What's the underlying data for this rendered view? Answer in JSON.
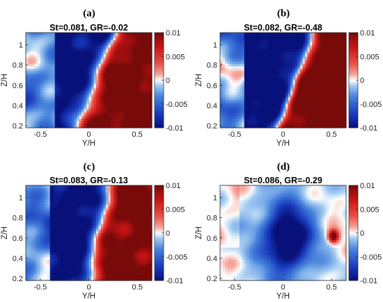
{
  "chart_data": [
    {
      "type": "heatmap",
      "panel_label": "(a)",
      "title": "St=0.081, GR=-0.02",
      "xlabel": "Y/H",
      "ylabel": "Z/H",
      "xlim": [
        -0.65,
        0.65
      ],
      "ylim": [
        0.18,
        1.12
      ],
      "xticks": [
        "-0.5",
        "0",
        "0.5"
      ],
      "xtick_values": [
        -0.5,
        0,
        0.5
      ],
      "yticks": [
        "0.2",
        "0.4",
        "0.6",
        "0.8",
        "1"
      ],
      "ytick_values": [
        0.2,
        0.4,
        0.6,
        0.8,
        1.0
      ],
      "colorbar": {
        "ticks": [
          "0.01",
          "0.005",
          "0",
          "-0.005",
          "-0.01"
        ],
        "values": [
          0.01,
          0.005,
          0,
          -0.005,
          -0.01
        ],
        "range": [
          -0.01,
          0.01
        ],
        "colormap": "blue-white-red"
      },
      "field_description": "blue (negative) band on left, white zero contour slanting from (0,0.2) up to (0.3,1.1), strong red region on right",
      "shape": "a"
    },
    {
      "type": "heatmap",
      "panel_label": "(b)",
      "title": "St=0.082, GR=-0.48",
      "xlabel": "Y/H",
      "ylabel": "Z/H",
      "xlim": [
        -0.65,
        0.65
      ],
      "ylim": [
        0.18,
        1.12
      ],
      "xticks": [
        "-0.5",
        "0",
        "0.5"
      ],
      "xtick_values": [
        -0.5,
        0,
        0.5
      ],
      "yticks": [
        "0.2",
        "0.4",
        "0.6",
        "0.8",
        "1"
      ],
      "ytick_values": [
        0.2,
        0.4,
        0.6,
        0.8,
        1.0
      ],
      "colorbar": {
        "ticks": [
          "0.01",
          "0.005",
          "0",
          "-0.005",
          "-0.01"
        ],
        "values": [
          0.01,
          0.005,
          0,
          -0.005,
          -0.01
        ],
        "range": [
          -0.01,
          0.01
        ],
        "colormap": "blue-white-red"
      },
      "shape": "b"
    },
    {
      "type": "heatmap",
      "panel_label": "(c)",
      "title": "St=0.083, GR=-0.13",
      "xlabel": "Y/H",
      "ylabel": "Z/H",
      "xlim": [
        -0.65,
        0.65
      ],
      "ylim": [
        0.18,
        1.12
      ],
      "xticks": [
        "-0.5",
        "0",
        "0.5"
      ],
      "xtick_values": [
        -0.5,
        0,
        0.5
      ],
      "yticks": [
        "0.2",
        "0.4",
        "0.6",
        "0.8",
        "1"
      ],
      "ytick_values": [
        0.2,
        0.4,
        0.6,
        0.8,
        1.0
      ],
      "colorbar": {
        "ticks": [
          "0.01",
          "0.005",
          "0",
          "-0.005",
          "-0.01"
        ],
        "values": [
          0.01,
          0.005,
          0,
          -0.005,
          -0.01
        ],
        "range": [
          -0.01,
          0.01
        ],
        "colormap": "blue-white-red"
      },
      "shape": "c"
    },
    {
      "type": "heatmap",
      "panel_label": "(d)",
      "title": "St=0.086, GR=-0.29",
      "xlabel": "Y/H",
      "ylabel": "Z/H",
      "xlim": [
        -0.65,
        0.65
      ],
      "ylim": [
        0.18,
        1.12
      ],
      "xticks": [
        "-0.5",
        "0",
        "0.5"
      ],
      "xtick_values": [
        -0.5,
        0,
        0.5
      ],
      "yticks": [
        "0.2",
        "0.4",
        "0.6",
        "0.8",
        "1"
      ],
      "ytick_values": [
        0.2,
        0.4,
        0.6,
        0.8,
        1.0
      ],
      "colorbar": {
        "ticks": [
          "0.01",
          "0.005",
          "0",
          "-0.005",
          "-0.01"
        ],
        "values": [
          0.01,
          0.005,
          0,
          -0.005,
          -0.01
        ],
        "range": [
          -0.01,
          0.01
        ],
        "colormap": "blue-white-red"
      },
      "shape": "d"
    }
  ],
  "colors": {
    "deep_blue": "#08117a",
    "mid_blue": "#2f68d3",
    "light_blue": "#9cc5ee",
    "white": "#ffffff",
    "light_red": "#f6a8a0",
    "mid_red": "#e4312a",
    "deep_red": "#7a0b0b"
  }
}
